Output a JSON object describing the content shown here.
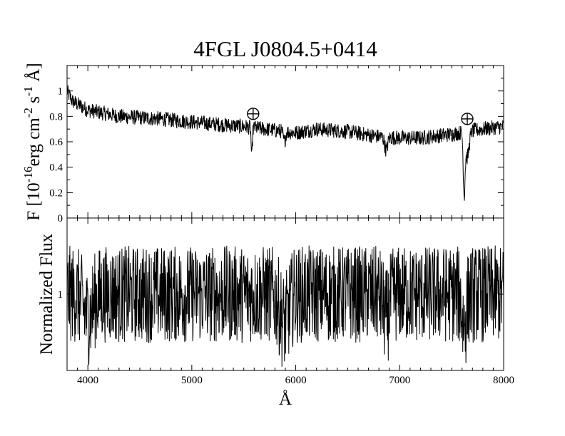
{
  "chart_data": {
    "type": "line",
    "title": "4FGL J0804.5+0414",
    "xlabel": "Å",
    "xlim": [
      3800,
      8000
    ],
    "x_ticks": [
      "4000",
      "5000",
      "6000",
      "7000",
      "8000"
    ],
    "panels": [
      {
        "name": "flux",
        "ylabel": {
          "prefix": "F [10",
          "exp": "-16",
          "unit": "erg cm",
          "exp2": "-2",
          "mid": " s",
          "exp3": "-1",
          "end": " Å]"
        },
        "ylim": [
          0,
          1.2
        ],
        "y_ticks": [
          "0",
          "0.2",
          "0.4",
          "0.6",
          "0.8",
          "1"
        ],
        "y_tick_values": [
          0,
          0.2,
          0.4,
          0.6,
          0.8,
          1.0
        ],
        "continuum": [
          [
            3800,
            1.0
          ],
          [
            3850,
            0.92
          ],
          [
            4000,
            0.85
          ],
          [
            4300,
            0.8
          ],
          [
            4700,
            0.78
          ],
          [
            5200,
            0.74
          ],
          [
            5500,
            0.72
          ],
          [
            5700,
            0.7
          ],
          [
            6000,
            0.67
          ],
          [
            6200,
            0.7
          ],
          [
            6500,
            0.68
          ],
          [
            6800,
            0.64
          ],
          [
            7000,
            0.63
          ],
          [
            7200,
            0.63
          ],
          [
            7500,
            0.66
          ],
          [
            7800,
            0.7
          ],
          [
            8000,
            0.72
          ]
        ],
        "features": [
          {
            "center": 5577,
            "depth": -0.24,
            "width": 8
          },
          {
            "center": 5890,
            "depth": -0.08,
            "width": 15
          },
          {
            "center": 6870,
            "depth": -0.1,
            "width": 20
          },
          {
            "center": 7620,
            "depth": -0.45,
            "width": 12
          },
          {
            "center": 7650,
            "depth": -0.2,
            "width": 25
          }
        ],
        "telluric_markers": [
          {
            "x": 5590,
            "y": 0.82,
            "symbol": "⊕"
          },
          {
            "x": 7650,
            "y": 0.78,
            "symbol": "⊕"
          }
        ]
      },
      {
        "name": "normalized",
        "ylabel": "Normalized Flux",
        "ylim": [
          0.5,
          1.5
        ],
        "y_ticks": [
          "1"
        ],
        "y_tick_values": [
          1.0
        ],
        "continuum": [
          [
            3800,
            1.0
          ],
          [
            8000,
            1.0
          ]
        ],
        "features": [
          {
            "center": 4000,
            "depth": -0.15,
            "width": 60
          },
          {
            "center": 5890,
            "depth": -0.18,
            "width": 60
          },
          {
            "center": 6870,
            "depth": -0.15,
            "width": 40
          },
          {
            "center": 7620,
            "depth": -0.2,
            "width": 30
          }
        ]
      }
    ]
  }
}
